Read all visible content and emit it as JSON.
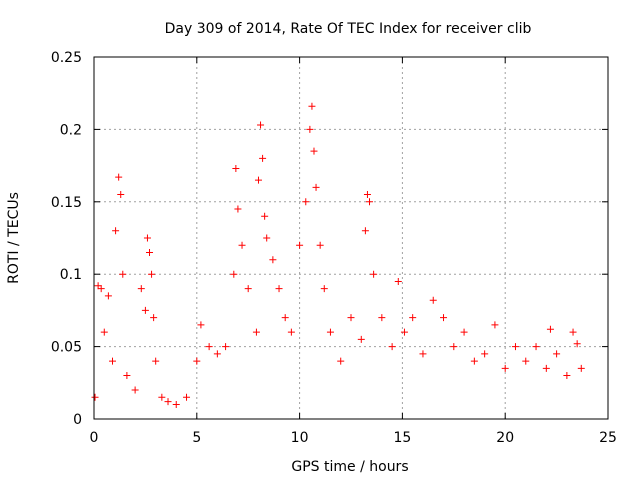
{
  "chart_data": {
    "type": "scatter",
    "title": "Day 309 of 2014, Rate Of TEC Index for receiver clib",
    "xlabel": "GPS time / hours",
    "ylabel": "ROTI / TECUs",
    "xlim": [
      0,
      25
    ],
    "ylim": [
      0,
      0.25
    ],
    "xticks": [
      0,
      5,
      10,
      15,
      20,
      25
    ],
    "xtick_labels": [
      "0",
      "5",
      "10",
      "15",
      "20",
      "25"
    ],
    "yticks": [
      0,
      0.05,
      0.1,
      0.15,
      0.2,
      0.25
    ],
    "ytick_labels": [
      "0",
      "0.05",
      "0.1",
      "0.15",
      "0.2",
      "0.25"
    ],
    "grid": true,
    "marker": "+",
    "marker_color": "#ff0000",
    "series": [
      {
        "name": "ROTI",
        "x": [
          0.05,
          0.2,
          0.35,
          0.5,
          0.7,
          0.9,
          1.05,
          1.2,
          1.3,
          1.4,
          1.6,
          2.0,
          2.3,
          2.5,
          2.6,
          2.7,
          2.8,
          2.9,
          3.0,
          3.3,
          3.6,
          4.0,
          4.5,
          5.0,
          5.2,
          5.6,
          6.0,
          6.4,
          6.8,
          6.9,
          7.0,
          7.2,
          7.5,
          7.9,
          8.0,
          8.1,
          8.2,
          8.3,
          8.4,
          8.7,
          9.0,
          9.3,
          9.6,
          10.0,
          10.3,
          10.5,
          10.6,
          10.7,
          10.8,
          11.0,
          11.2,
          11.5,
          12.0,
          12.5,
          13.0,
          13.2,
          13.3,
          13.4,
          13.6,
          14.0,
          14.5,
          14.8,
          15.1,
          15.5,
          16.0,
          16.5,
          17.0,
          17.5,
          18.0,
          18.5,
          19.0,
          19.5,
          20.0,
          20.5,
          21.0,
          21.5,
          22.0,
          22.2,
          22.5,
          23.0,
          23.3,
          23.5,
          23.7
        ],
        "y": [
          0.015,
          0.092,
          0.09,
          0.06,
          0.085,
          0.04,
          0.13,
          0.167,
          0.155,
          0.1,
          0.03,
          0.02,
          0.09,
          0.075,
          0.125,
          0.115,
          0.1,
          0.07,
          0.04,
          0.015,
          0.012,
          0.01,
          0.015,
          0.04,
          0.065,
          0.05,
          0.045,
          0.05,
          0.1,
          0.173,
          0.145,
          0.12,
          0.09,
          0.06,
          0.165,
          0.203,
          0.18,
          0.14,
          0.125,
          0.11,
          0.09,
          0.07,
          0.06,
          0.12,
          0.15,
          0.2,
          0.216,
          0.185,
          0.16,
          0.12,
          0.09,
          0.06,
          0.04,
          0.07,
          0.055,
          0.13,
          0.155,
          0.15,
          0.1,
          0.07,
          0.05,
          0.095,
          0.06,
          0.07,
          0.045,
          0.082,
          0.07,
          0.05,
          0.06,
          0.04,
          0.045,
          0.065,
          0.035,
          0.05,
          0.04,
          0.05,
          0.035,
          0.062,
          0.045,
          0.03,
          0.06,
          0.052,
          0.035
        ]
      }
    ]
  }
}
